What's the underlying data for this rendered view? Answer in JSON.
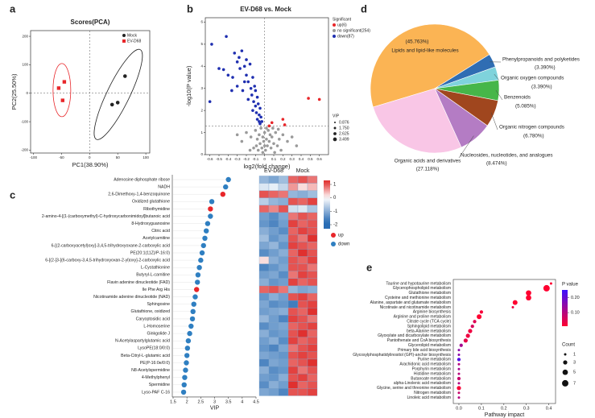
{
  "chart_data": [
    {
      "panel": "a",
      "type": "scatter",
      "title": "Scores(PCA)",
      "xlabel": "PC1(38.90%)",
      "ylabel": "PC2(25.50%)",
      "xlim": [
        -105,
        107
      ],
      "ylim": [
        -210,
        220
      ],
      "xticks": [
        -100,
        -50,
        0,
        50,
        100
      ],
      "yticks": [
        -200,
        -100,
        0,
        100,
        200
      ],
      "hline": 0,
      "vline": 0,
      "series": [
        {
          "name": "Mock",
          "color": "#222222",
          "marker": "circle",
          "x": [
            40,
            50,
            63
          ],
          "values": [
            -40,
            -33,
            60
          ]
        },
        {
          "name": "EV-D68",
          "color": "#e8262a",
          "marker": "square",
          "x": [
            -45,
            -55,
            -48
          ],
          "values": [
            40,
            18,
            -25
          ]
        }
      ]
    },
    {
      "panel": "b",
      "type": "scatter",
      "title": "EV-D68 vs. Mock",
      "xlabel": "log2(fold change)",
      "ylabel": "-log10(P value)",
      "xlim": [
        -0.65,
        0.7
      ],
      "ylim": [
        0,
        6.2
      ],
      "xticks": [
        -0.6,
        -0.5,
        -0.4,
        -0.3,
        -0.2,
        -0.1,
        0,
        0.1,
        0.2,
        0.3,
        0.4,
        0.5,
        0.6
      ],
      "yticks": [
        0,
        1,
        2,
        3,
        4,
        5,
        6
      ],
      "hline": 1.3,
      "vline": 0,
      "legend_title": "Significant",
      "size_title": "VIP",
      "size_values": [
        0.876,
        {
          "value": 1.75,
          "label": "1.750"
        },
        2.625,
        3.499
      ],
      "series": [
        {
          "name": "up(6)",
          "color": "#e8262a",
          "marker": "circle",
          "x": [
            0.48,
            0.6,
            0.2,
            0.08,
            0.22,
            0.05
          ],
          "values": [
            2.55,
            2.5,
            1.6,
            1.45,
            1.35,
            1.3
          ]
        },
        {
          "name": "no significant(254)",
          "color": "#9a9a9a",
          "marker": "circle",
          "x": [
            -0.2,
            -0.15,
            -0.1,
            -0.08,
            -0.06,
            -0.05,
            -0.04,
            -0.03,
            -0.02,
            -0.01,
            0,
            0.01,
            0.02,
            0.03,
            0.04,
            0.05,
            0.06,
            0.07,
            0.08,
            0.1,
            0.12,
            0.14,
            0.16,
            0.18,
            0.2,
            0.25,
            0.3,
            -0.12,
            -0.25,
            -0.3,
            -0.02,
            0,
            -0.07,
            0.02,
            0.09,
            -0.09,
            0.11,
            0.15,
            -0.16,
            0.35
          ],
          "values": [
            1.0,
            0.8,
            1.1,
            0.7,
            0.9,
            0.5,
            1.2,
            0.3,
            0.8,
            0.6,
            1.0,
            0.2,
            0.7,
            0.4,
            1.1,
            0.6,
            0.9,
            0.3,
            0.8,
            0.5,
            1.0,
            0.4,
            0.7,
            0.2,
            0.9,
            0.6,
            0.8,
            0.3,
            0.6,
            0.9,
            0.1,
            0.4,
            0.2,
            1.2,
            1.2,
            0.4,
            0.1,
            1.15,
            0.2,
            0.4
          ]
        },
        {
          "name": "down(87)",
          "color": "#1f2fb0",
          "marker": "circle",
          "x": [
            -0.58,
            -0.42,
            -0.6,
            -0.5,
            -0.45,
            -0.4,
            -0.35,
            -0.33,
            -0.3,
            -0.28,
            -0.27,
            -0.25,
            -0.22,
            -0.2,
            -0.2,
            -0.18,
            -0.16,
            -0.15,
            -0.14,
            -0.13,
            -0.12,
            -0.11,
            -0.1,
            -0.1,
            -0.09,
            -0.08,
            -0.08,
            -0.07,
            -0.06,
            -0.06,
            -0.05,
            -0.05,
            -0.04,
            -0.03,
            -0.3,
            -0.24,
            -0.18,
            -0.13,
            -0.22,
            -0.36
          ],
          "values": [
            5.0,
            5.35,
            2.4,
            3.9,
            3.85,
            3.6,
            3.5,
            4.6,
            4.2,
            4.4,
            3.9,
            4.7,
            4.0,
            4.3,
            3.6,
            3.3,
            4.1,
            3.0,
            2.7,
            3.5,
            2.4,
            3.1,
            2.2,
            2.9,
            1.9,
            2.6,
            1.6,
            2.3,
            1.8,
            1.5,
            2.1,
            1.4,
            1.7,
            1.5,
            3.1,
            2.9,
            2.5,
            2.0,
            3.3,
            2.9
          ]
        }
      ]
    },
    {
      "panel": "c",
      "type": "dot",
      "xlabel": "VIP",
      "xlim": [
        1.5,
        4.5
      ],
      "xticks": [
        1.5,
        2,
        2.5,
        3,
        3.5,
        4,
        4.5
      ],
      "legend": [
        {
          "name": "up",
          "color": "#e8262a"
        },
        {
          "name": "down",
          "color": "#2f7fc1"
        }
      ],
      "categories": [
        "Adenosine diphosphate ribose",
        "NADH",
        "2,6-Dimethoxy-1,4-benzoquinone",
        "Oxidized glutathione",
        "Ribothymidine",
        "2-amino-4-[(1-(carboxymethyl)-C-hydroxycarbonimidoyl]butanoic acid",
        "8-Hydroxyguanosine",
        "Citric acid",
        "Acetylcarnitine",
        "6-[(2-carboxyacetyl)oxy]-3,4,5-trihydroxyoxane-2-carboxylic acid",
        "PE(20:1(11Z)/P-16:0)",
        "6-[(2-[3-[(6-carboxy-3,4,5-trihydroxyoxan-2-yl)oxy]-2-carboxylic acid",
        "L-Cystathionine",
        "Butyryl-L-carnitine",
        "Flavin adenine dinucleotide (FAD)",
        "Ile Phe Arg His",
        "Nicotinamide adenine dinucleotide (NAD)",
        "Sphingosine",
        "Glutathione, oxidized",
        "Caryoptosidic acid",
        "L-Homoserine",
        "Ginkgolide J",
        "N-Acetylaspartylglutamic acid",
        "LysoPE(18:0/0:0)",
        "Beta-Citryl-L-glutamic acid",
        "PE(P-16:0e/0:0)",
        "N8-Acetylspermidine",
        "4-Methylphenyl",
        "Spermidine",
        "Lyso-PAF C-16"
      ],
      "values": [
        3.5,
        3.4,
        3.3,
        2.9,
        2.85,
        2.85,
        2.75,
        2.7,
        2.65,
        2.6,
        2.55,
        2.5,
        2.45,
        2.4,
        2.38,
        2.35,
        2.3,
        2.25,
        2.22,
        2.2,
        2.15,
        2.1,
        2.05,
        2.02,
        2.0,
        1.98,
        1.95,
        1.92,
        1.9,
        1.88
      ],
      "groups": [
        "down",
        "down",
        "up",
        "down",
        "up",
        "down",
        "down",
        "down",
        "down",
        "down",
        "down",
        "down",
        "down",
        "down",
        "down",
        "up",
        "down",
        "down",
        "down",
        "down",
        "down",
        "down",
        "down",
        "down",
        "down",
        "down",
        "down",
        "down",
        "down",
        "down"
      ]
    },
    {
      "type": "heatmap",
      "groups": [
        "EV-D68",
        "Mock"
      ],
      "clim": [
        -2.3,
        1.3
      ],
      "cticks": [
        1,
        0,
        -1,
        -2
      ],
      "values": [
        [
          -0.9,
          -1.1,
          -0.8,
          0.9,
          1.0,
          0.8
        ],
        [
          -0.3,
          -0.2,
          -0.5,
          0.6,
          0.2,
          0.4
        ],
        [
          1.0,
          0.9,
          0.8,
          -0.9,
          -1.0,
          -0.8
        ],
        [
          -0.6,
          -0.9,
          -1.0,
          1.0,
          0.9,
          1.1
        ],
        [
          0.9,
          0.7,
          1.0,
          -0.4,
          -0.3,
          -0.7
        ],
        [
          -1.2,
          -1.4,
          -1.1,
          0.8,
          1.0,
          0.9
        ],
        [
          -1.3,
          -1.5,
          -1.2,
          1.1,
          0.9,
          1.0
        ],
        [
          -1.0,
          -1.2,
          -1.4,
          0.9,
          1.1,
          1.0
        ],
        [
          -0.8,
          -1.3,
          -1.1,
          1.0,
          0.8,
          1.2
        ],
        [
          -1.1,
          -0.9,
          -1.3,
          1.1,
          1.0,
          0.9
        ],
        [
          -1.4,
          -1.2,
          -1.0,
          0.9,
          1.2,
          1.0
        ],
        [
          0.2,
          -1.0,
          -1.2,
          1.0,
          0.9,
          1.1
        ],
        [
          -1.5,
          -1.3,
          -1.1,
          1.0,
          1.0,
          0.8
        ],
        [
          -1.2,
          -1.1,
          -1.4,
          0.8,
          1.1,
          1.0
        ],
        [
          -1.0,
          -1.3,
          -1.2,
          1.1,
          0.9,
          1.0
        ],
        [
          0.9,
          1.0,
          0.8,
          -0.9,
          -1.1,
          -1.0
        ],
        [
          -1.3,
          -1.0,
          -1.2,
          1.0,
          1.1,
          0.9
        ],
        [
          -1.1,
          -1.4,
          -1.3,
          -1.6,
          1.0,
          1.1
        ],
        [
          -1.2,
          -1.1,
          -1.0,
          1.0,
          0.9,
          1.2
        ],
        [
          -0.9,
          -1.2,
          -1.5,
          1.1,
          1.0,
          0.8
        ],
        [
          -1.4,
          -1.2,
          -1.1,
          0.9,
          1.0,
          1.1
        ],
        [
          -1.0,
          -1.3,
          -1.2,
          1.0,
          1.2,
          0.9
        ],
        [
          -1.2,
          -1.0,
          -1.4,
          1.1,
          0.9,
          1.0
        ],
        [
          -1.3,
          -1.5,
          -1.1,
          0.8,
          1.0,
          1.1
        ],
        [
          -1.1,
          -1.2,
          -1.3,
          1.0,
          1.1,
          1.0
        ],
        [
          -1.5,
          -1.1,
          -1.2,
          0.9,
          1.0,
          1.2
        ],
        [
          -1.0,
          -1.4,
          -1.3,
          1.1,
          0.8,
          1.0
        ],
        [
          -1.2,
          -1.3,
          -1.0,
          1.0,
          1.1,
          0.9
        ],
        [
          -1.4,
          -1.0,
          -1.2,
          1.2,
          0.9,
          1.0
        ],
        [
          -1.1,
          -1.2,
          -1.5,
          1.0,
          1.0,
          1.1
        ]
      ]
    },
    {
      "panel": "d",
      "type": "pie",
      "categories": [
        "Lipids and lipid-like molecules",
        "Phenylpropanoids and polyketides",
        "Organic oxygen compounds",
        "Benzenoids",
        "Organic nitrogen compounds",
        "Nucleosides, nucleotides, and analogues",
        "Organic acids and derivatives"
      ],
      "values": [
        45.763,
        3.39,
        3.39,
        5.085,
        6.78,
        8.474,
        27.118
      ],
      "value_labels": [
        "(45.763%)",
        "(3.390%)",
        "(3.390%)",
        "(5.085%)",
        "(6.780%)",
        "(8.474%)",
        "(27.118%)"
      ],
      "colors": [
        "#fbb454",
        "#2f6db3",
        "#7fd3dc",
        "#46b649",
        "#a0461e",
        "#b47cc4",
        "#f9c6e6"
      ]
    },
    {
      "panel": "e",
      "type": "bubble",
      "xlabel": "Pathway impact",
      "xlim": [
        -0.025,
        0.43
      ],
      "xticks": [
        {
          "value": 0,
          "label": "0.0"
        },
        0.1,
        0.2,
        0.3,
        0.4
      ],
      "color_title": "P value",
      "clim": [
        0.01,
        0.25
      ],
      "cticks": [
        {
          "value": 0.2,
          "label": "0.20"
        },
        {
          "value": 0.1,
          "label": "0.10"
        }
      ],
      "size_title": "Count",
      "size_values": [
        1,
        3,
        5,
        7
      ],
      "categories": [
        "Taurine and hypotaurine metabolism",
        "Glycerophospholipid metabolism",
        "Glutathione metabolism",
        "Cysteine and methionine metabolism",
        "Alanine, aspartate and glutamate metabolism",
        "Nicotinate and nicotinamide metabolism",
        "Arginine biosynthesis",
        "Arginine and proline metabolism",
        "Citrate cycle (TCA cycle)",
        "Sphingolipid metabolism",
        "beta-Alanine metabolism",
        "Glyoxylate and dicarboxylate metabolism",
        "Pantothenate and CoA biosynthesis",
        "Glycerolipid metabolism",
        "Primary bile acid biosynthesis",
        "Glycosylphosphatidylinositol (GPI)-anchor biosynthesis",
        "Purine metabolism",
        "Arachidonic acid metabolism",
        "Porphyrin metabolism",
        "Histidine metabolism",
        "Butanoate metabolism",
        "alpha-Linolenic acid metabolism",
        "Glycine, serine and threonine metabolism",
        "Nitrogen metabolism",
        "Linoleic acid metabolism"
      ],
      "values": [
        0.41,
        0.39,
        0.31,
        0.31,
        0.25,
        0.24,
        0.1,
        0.09,
        0.07,
        0.06,
        0.05,
        0.04,
        0.03,
        0.01,
        0,
        0,
        0,
        0,
        0,
        0,
        0,
        0,
        0,
        0,
        0
      ],
      "counts": [
        1,
        7,
        5,
        5,
        4,
        1,
        2,
        4,
        2,
        2,
        3,
        3,
        3,
        2,
        1,
        1,
        2,
        1,
        1,
        1,
        2,
        1,
        3,
        1,
        1
      ],
      "pvalues": [
        0.01,
        0.01,
        0.01,
        0.01,
        0.01,
        0.03,
        0.02,
        0.01,
        0.05,
        0.06,
        0.03,
        0.03,
        0.04,
        0.12,
        0.15,
        0.15,
        0.22,
        0.1,
        0.12,
        0.1,
        0.08,
        0.11,
        0.02,
        0.08,
        0.1
      ]
    }
  ]
}
